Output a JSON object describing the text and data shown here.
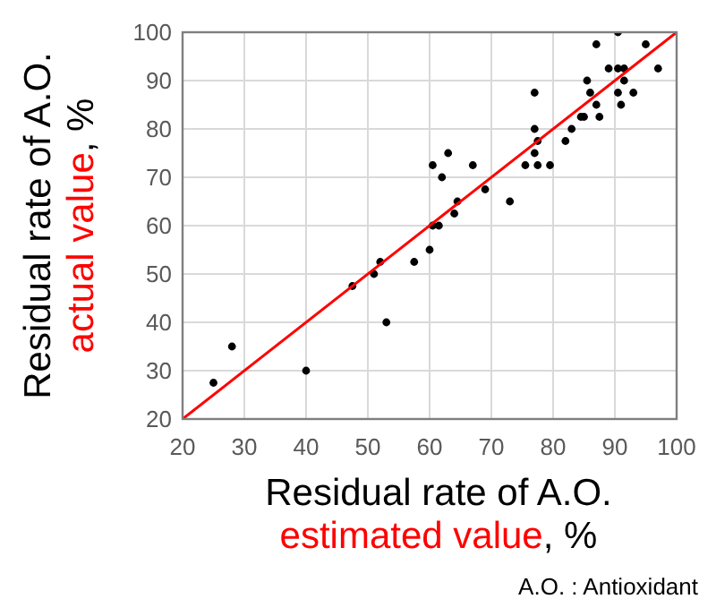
{
  "chart_data": {
    "type": "scatter",
    "xlabel": "Residual rate of A.O.\nestimated value, %",
    "ylabel": "Residual rate of A.O.\nactual value, %",
    "annotations": [
      "A.O. : Antioxidant"
    ],
    "xlim": [
      20,
      100
    ],
    "ylim": [
      20,
      100
    ],
    "xticks": [
      20,
      30,
      40,
      50,
      60,
      70,
      80,
      90,
      100
    ],
    "yticks": [
      20,
      30,
      40,
      50,
      60,
      70,
      80,
      90,
      100
    ],
    "grid": true,
    "series": [
      {
        "color": "#000000",
        "marker": "circle",
        "x": [
          25,
          28,
          40,
          47.5,
          51,
          52,
          53,
          57.5,
          60,
          60.5,
          60.5,
          61.5,
          62,
          63,
          64,
          64.5,
          67,
          69,
          73,
          75.5,
          77,
          77,
          77,
          77.5,
          77.5,
          79.5,
          82,
          83,
          84.5,
          85,
          85.5,
          86,
          87,
          87,
          87.5,
          89,
          90.5,
          90.5,
          90.5,
          91.5,
          91.5,
          91,
          93,
          95,
          97
        ],
        "values": [
          27.5,
          35,
          30,
          47.5,
          50,
          52.5,
          40,
          52.5,
          55,
          72.5,
          60,
          60,
          70,
          75,
          62.5,
          65,
          72.5,
          67.5,
          65,
          72.5,
          80,
          75,
          87.5,
          77.5,
          72.5,
          72.5,
          77.5,
          80,
          82.5,
          82.5,
          90,
          87.5,
          85,
          97.5,
          82.5,
          92.5,
          92.5,
          100,
          87.5,
          90,
          92.5,
          85,
          87.5,
          97.5,
          92.5
        ]
      },
      {
        "type": "line",
        "color": "#ff0000",
        "marker": "none",
        "line_style": "solid",
        "x": [
          20,
          100
        ],
        "values": [
          20,
          100
        ]
      }
    ]
  }
}
